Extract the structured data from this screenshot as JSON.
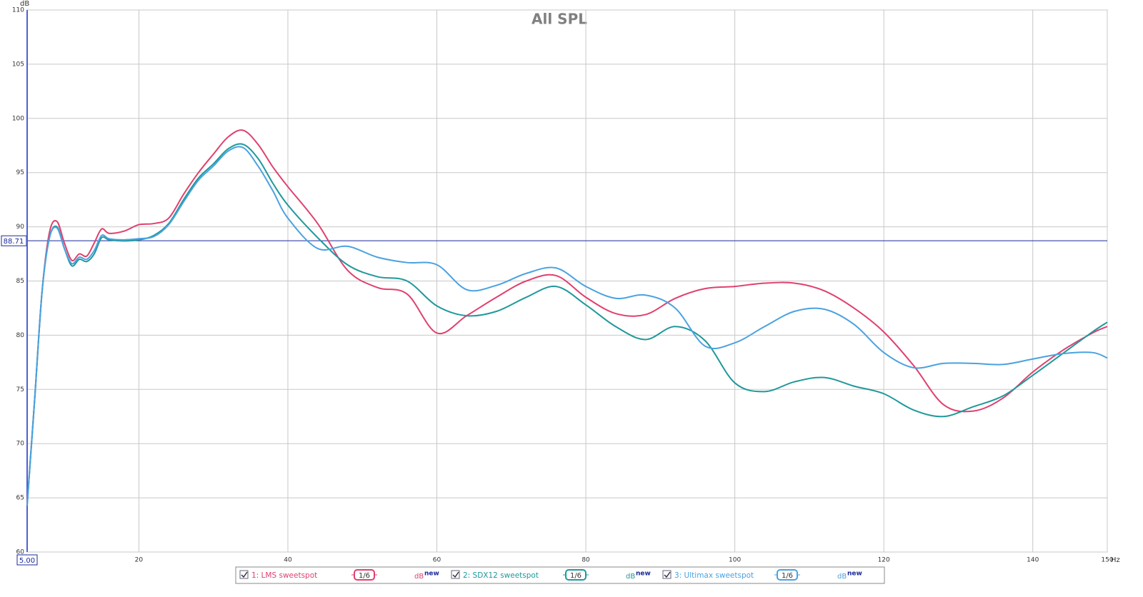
{
  "chart_data": {
    "type": "line",
    "title": "All SPL",
    "y_label": "dB",
    "x_label": "Hz",
    "xlim": [
      5,
      150
    ],
    "ylim": [
      60,
      110
    ],
    "xticks": [
      20,
      40,
      60,
      80,
      100,
      120,
      140,
      150
    ],
    "yticks": [
      60,
      65,
      70,
      75,
      80,
      85,
      90,
      95,
      100,
      105,
      110
    ],
    "grid": true,
    "cursor_x": {
      "value": 5,
      "label": "5.00"
    },
    "cursor_y": {
      "value": 88.71,
      "label": "88.71"
    },
    "legend_unit": "dB",
    "legend_badge": "new",
    "x": [
      5,
      6,
      7,
      8,
      9,
      10,
      11,
      12,
      13,
      14,
      15,
      16,
      18,
      20,
      22,
      24,
      26,
      28,
      30,
      32,
      34,
      36,
      38,
      40,
      44,
      48,
      52,
      56,
      60,
      64,
      68,
      72,
      76,
      80,
      84,
      88,
      92,
      96,
      100,
      104,
      108,
      112,
      116,
      120,
      124,
      128,
      132,
      136,
      140,
      144,
      148,
      150
    ],
    "series": [
      {
        "name": "1: LMS sweetspot",
        "color": "#e0406e",
        "smoothing": "1/6",
        "values": [
          64.5,
          74,
          84,
          89.5,
          90.5,
          88.5,
          86.9,
          87.5,
          87.3,
          88.5,
          89.8,
          89.4,
          89.6,
          90.2,
          90.3,
          90.8,
          93,
          95,
          96.7,
          98.3,
          98.9,
          97.6,
          95.5,
          93.7,
          90.3,
          86,
          84.4,
          83.8,
          80.2,
          81.8,
          83.5,
          85,
          85.5,
          83.5,
          82,
          81.9,
          83.4,
          84.3,
          84.5,
          84.8,
          84.8,
          84.1,
          82.5,
          80.3,
          77.2,
          73.6,
          73,
          74.2,
          76.6,
          78.6,
          80.2,
          80.8
        ]
      },
      {
        "name": "2: SDX12 sweetspot",
        "color": "#20989a",
        "smoothing": "1/6",
        "values": [
          64.3,
          74,
          84,
          89,
          90,
          88,
          86.4,
          87,
          86.8,
          87.5,
          89,
          88.8,
          88.7,
          88.8,
          89.2,
          90.3,
          92.5,
          94.5,
          95.8,
          97.2,
          97.6,
          96.3,
          94,
          92,
          89,
          86.5,
          85.4,
          85,
          82.7,
          81.8,
          82.2,
          83.5,
          84.5,
          82.8,
          80.8,
          79.6,
          80.8,
          79.5,
          75.6,
          74.8,
          75.7,
          76.1,
          75.3,
          74.6,
          73.1,
          72.5,
          73.4,
          74.4,
          76.3,
          78.3,
          80.3,
          81.2
        ]
      },
      {
        "name": "3: Ultimax sweetspot",
        "color": "#4aa2e0",
        "smoothing": "1/6",
        "values": [
          64.3,
          74,
          84,
          89,
          89.9,
          88,
          86.6,
          87.2,
          87,
          87.8,
          89.2,
          88.9,
          88.8,
          88.9,
          89.1,
          90.2,
          92.3,
          94.3,
          95.6,
          97,
          97.3,
          95.6,
          93.3,
          90.8,
          88,
          88.2,
          87.2,
          86.7,
          86.5,
          84.2,
          84.6,
          85.7,
          86.2,
          84.5,
          83.4,
          83.7,
          82.5,
          79,
          79.3,
          80.8,
          82.2,
          82.4,
          81,
          78.4,
          77,
          77.4,
          77.4,
          77.3,
          77.8,
          78.3,
          78.4,
          77.9
        ]
      }
    ]
  }
}
